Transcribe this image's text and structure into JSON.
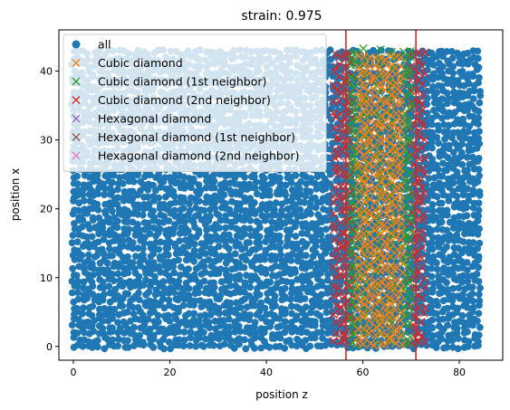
{
  "chart_data": {
    "type": "scatter",
    "title": "strain: 0.975",
    "xlabel": "position z",
    "ylabel": "position x",
    "xlim": [
      -3,
      89
    ],
    "ylim": [
      -2,
      46
    ],
    "xticks": [
      "0",
      "20",
      "40",
      "60",
      "80"
    ],
    "yticks": [
      "0",
      "10",
      "20",
      "30",
      "40"
    ],
    "legend_position": "upper-left",
    "vertical_lines": [
      56.5,
      71.0
    ],
    "vertical_line_color": "#d62728",
    "series": [
      {
        "name": "all",
        "marker": "circle",
        "color": "#1f77b4",
        "x_range": [
          0,
          85
        ],
        "y_range": [
          0,
          43
        ]
      },
      {
        "name": "Cubic diamond",
        "marker": "x",
        "color": "#ff7f0e",
        "x_range": [
          59,
          68
        ],
        "y_range": [
          0.5,
          43
        ]
      },
      {
        "name": "Cubic diamond (1st neighbor)",
        "marker": "x",
        "color": "#2ca02c",
        "x_range": [
          57,
          70
        ],
        "y_range": [
          0.5,
          43
        ]
      },
      {
        "name": "Cubic diamond (2nd neighbor)",
        "marker": "x",
        "color": "#d62728",
        "x_range": [
          54,
          73
        ],
        "y_range": [
          0.5,
          43
        ]
      },
      {
        "name": "Hexagonal diamond",
        "marker": "x",
        "color": "#9467bd",
        "points": []
      },
      {
        "name": "Hexagonal diamond (1st neighbor)",
        "marker": "x",
        "color": "#8c564b",
        "points": []
      },
      {
        "name": "Hexagonal diamond (2nd neighbor)",
        "marker": "x",
        "color": "#e377c2",
        "points": []
      }
    ]
  }
}
